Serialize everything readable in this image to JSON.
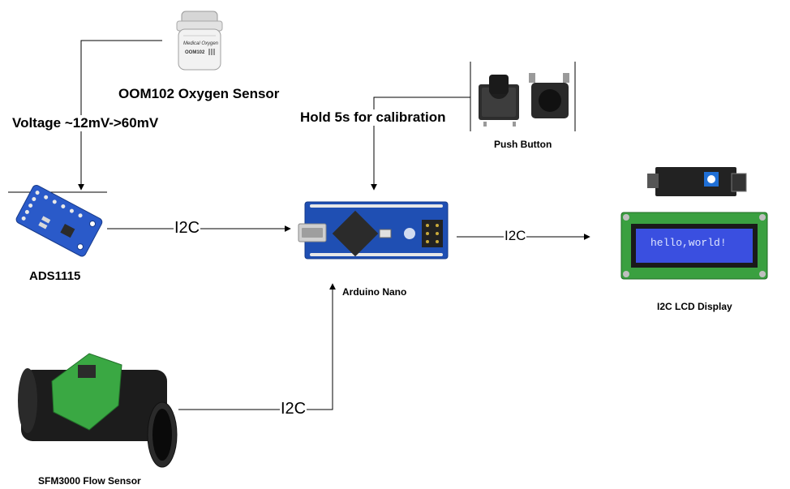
{
  "nodes": {
    "oxygen_sensor": {
      "label": "OOM102 Oxygen Sensor",
      "print": "Medical Oxygen",
      "model": "OOM102"
    },
    "adc": {
      "label": "ADS1115"
    },
    "arduino": {
      "label": "Arduino Nano"
    },
    "button": {
      "label": "Push Button"
    },
    "lcd": {
      "label": "I2C LCD Display",
      "screen_text": "hello,world!"
    },
    "flow_sensor": {
      "label": "SFM3000 Flow Sensor"
    }
  },
  "edges": {
    "oxygen_to_adc": {
      "label": "Voltage ~12mV->60mV"
    },
    "adc_to_arduino": {
      "label": "I2C"
    },
    "button_to_arduino": {
      "label": "Hold 5s for calibration"
    },
    "arduino_to_lcd": {
      "label": "I2C"
    },
    "flow_to_arduino": {
      "label": "I2C"
    }
  },
  "colors": {
    "line": "#000000",
    "pcb_blue": "#1f4fb3",
    "lcd_screen": "#3a4fe0",
    "sensor_green": "#3aa843",
    "sensor_tube": "#1c1c1c"
  }
}
